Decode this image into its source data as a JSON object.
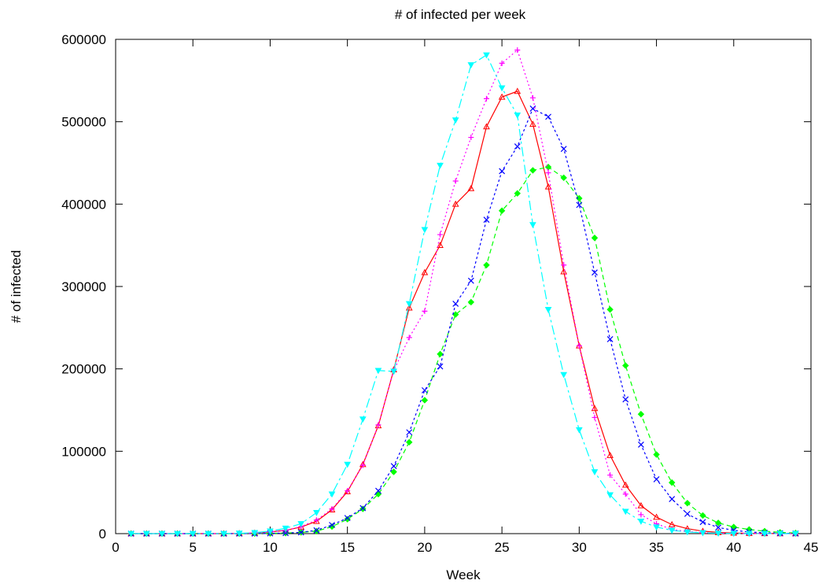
{
  "chart_data": {
    "type": "line",
    "title": "# of infected per week",
    "xlabel": "Week",
    "ylabel": "# of infected",
    "xlim": [
      0,
      45
    ],
    "ylim": [
      0,
      600000
    ],
    "xticks": [
      "0",
      "5",
      "10",
      "15",
      "20",
      "25",
      "30",
      "35",
      "40",
      "45"
    ],
    "yticks": [
      "0",
      "100000",
      "200000",
      "300000",
      "400000",
      "500000",
      "600000"
    ],
    "grid": false,
    "legend": "none",
    "x": [
      1,
      2,
      3,
      4,
      5,
      6,
      7,
      8,
      9,
      10,
      11,
      12,
      13,
      14,
      15,
      16,
      17,
      18,
      19,
      20,
      21,
      22,
      23,
      24,
      25,
      26,
      27,
      28,
      29,
      30,
      31,
      32,
      33,
      34,
      35,
      36,
      37,
      38,
      39,
      40,
      41,
      42,
      43,
      44
    ],
    "series": [
      {
        "color": "#ff0000",
        "marker": "triangle",
        "dash": "solid",
        "values": [
          0,
          0,
          0,
          0,
          0,
          0,
          0,
          200,
          800,
          2000,
          4000,
          8000,
          15000,
          29000,
          51000,
          84000,
          131000,
          199000,
          274000,
          317000,
          350000,
          400000,
          419000,
          494000,
          530000,
          537000,
          497000,
          421000,
          318000,
          228000,
          152000,
          95000,
          59000,
          34000,
          20000,
          11000,
          6000,
          3000,
          1500,
          800,
          400,
          200,
          100,
          50
        ]
      },
      {
        "color": "#00ff00",
        "marker": "diamond",
        "dash": "6,4",
        "values": [
          0,
          0,
          0,
          0,
          0,
          0,
          0,
          0,
          100,
          300,
          700,
          1500,
          3000,
          8500,
          17500,
          30000,
          48000,
          75000,
          111000,
          162000,
          218000,
          266000,
          281000,
          326000,
          392000,
          413000,
          441000,
          445000,
          432000,
          407000,
          359000,
          272000,
          204000,
          145000,
          96000,
          62000,
          37000,
          22000,
          13000,
          8000,
          5000,
          3000,
          1500,
          800
        ]
      },
      {
        "color": "#0000ff",
        "marker": "cross",
        "dash": "3,3",
        "values": [
          0,
          0,
          0,
          0,
          0,
          0,
          0,
          0,
          100,
          300,
          700,
          1500,
          4000,
          10500,
          19000,
          31000,
          52000,
          82000,
          123000,
          174000,
          203000,
          279000,
          307000,
          381000,
          440000,
          470000,
          516000,
          506000,
          467000,
          399000,
          317000,
          236000,
          163000,
          108000,
          66000,
          42000,
          24000,
          14000,
          7500,
          4000,
          2000,
          1000,
          500,
          200
        ]
      },
      {
        "color": "#ff00ff",
        "marker": "plus",
        "dash": "2,3",
        "values": [
          0,
          0,
          0,
          0,
          0,
          0,
          0,
          200,
          800,
          2000,
          4000,
          8500,
          16500,
          30000,
          52000,
          83000,
          132000,
          198000,
          238000,
          270000,
          363000,
          428000,
          481000,
          528000,
          571000,
          587000,
          529000,
          438000,
          326000,
          228000,
          141000,
          71000,
          48000,
          23000,
          12000,
          5000,
          2500,
          1200,
          600,
          300,
          150,
          80,
          40,
          20
        ]
      },
      {
        "color": "#00ffff",
        "marker": "triangle-down",
        "dash": "12,4,3,4",
        "values": [
          0,
          0,
          0,
          0,
          0,
          0,
          0,
          400,
          1200,
          3000,
          6500,
          12000,
          25500,
          48000,
          84000,
          139000,
          198000,
          197000,
          279000,
          369000,
          447000,
          502000,
          569000,
          581000,
          541000,
          508000,
          375000,
          272000,
          193000,
          126000,
          75000,
          47000,
          27000,
          15000,
          8000,
          4000,
          2000,
          1000,
          500,
          250,
          120,
          60,
          30,
          15
        ]
      }
    ]
  }
}
